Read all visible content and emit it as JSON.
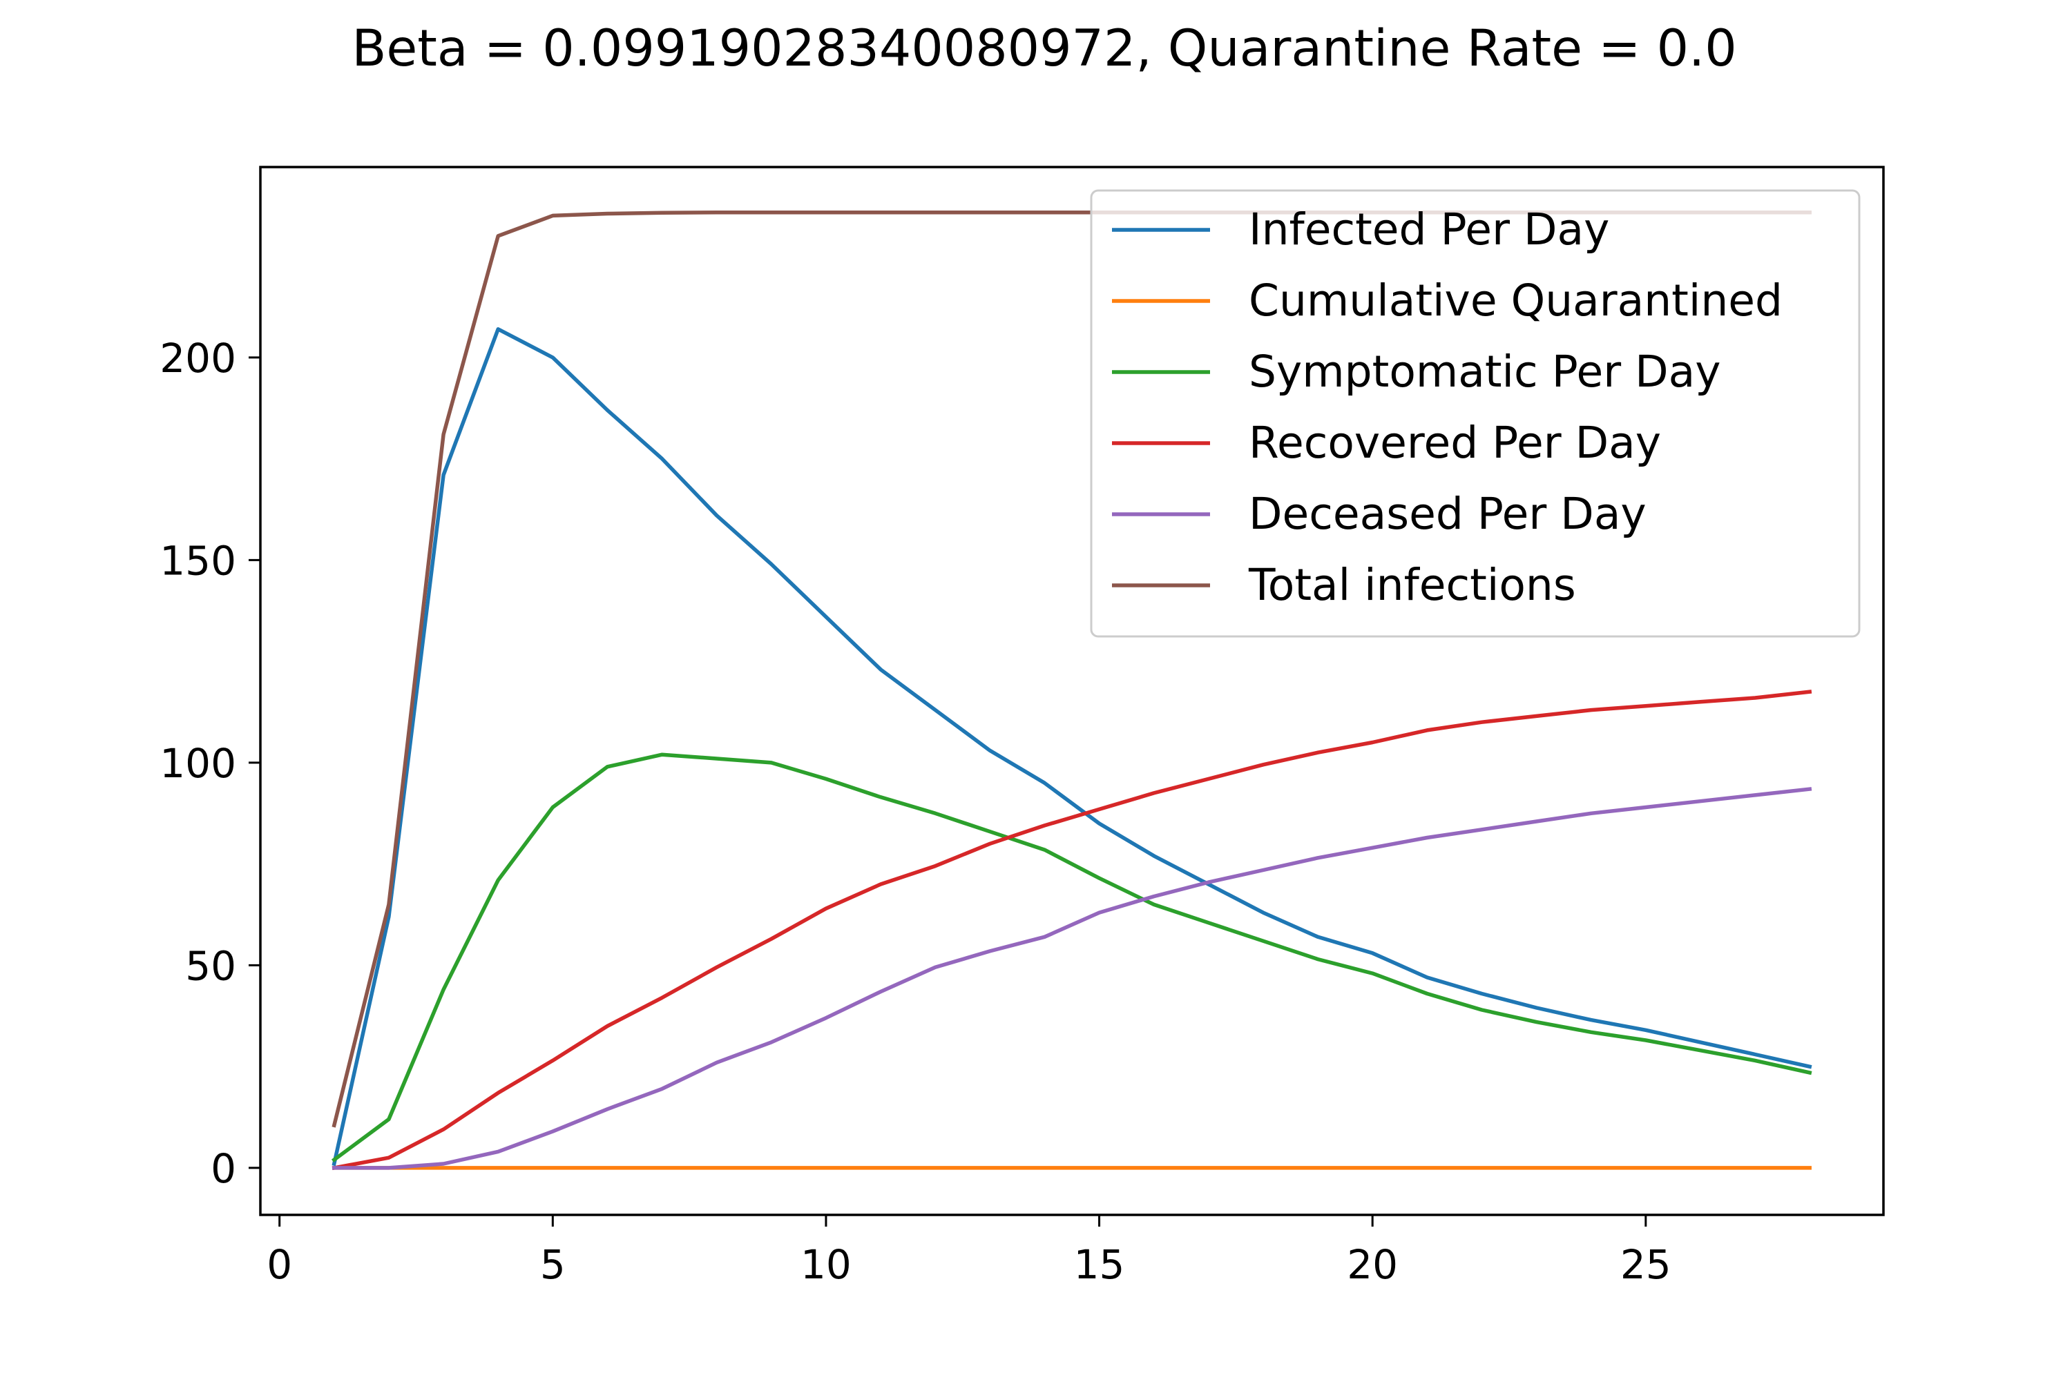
{
  "chart_data": {
    "type": "line",
    "title": "Beta = 0.09919028340080972, Quarantine Rate = 0.0",
    "xlabel": "",
    "ylabel": "",
    "xlim": [
      -0.35,
      29.35
    ],
    "ylim": [
      -11.6,
      247
    ],
    "xticks": [
      0,
      5,
      10,
      15,
      20,
      25
    ],
    "yticks": [
      0,
      50,
      100,
      150,
      200
    ],
    "grid": false,
    "legend_position": "upper right",
    "x": [
      1,
      2,
      3,
      4,
      5,
      6,
      7,
      8,
      9,
      10,
      11,
      12,
      13,
      14,
      15,
      16,
      17,
      18,
      19,
      20,
      21,
      22,
      23,
      24,
      25,
      26,
      27,
      28
    ],
    "series": [
      {
        "name": "Infected Per Day",
        "color": "#1f77b4",
        "values": [
          1,
          62,
          171,
          207,
          200,
          187,
          175,
          161,
          149,
          136,
          123,
          113,
          103,
          95,
          85,
          77,
          70,
          63,
          57,
          53,
          47,
          43,
          39.5,
          36.5,
          34,
          31,
          28,
          25
        ]
      },
      {
        "name": "Cumulative Quarantined",
        "color": "#ff7f0e",
        "values": [
          0,
          0,
          0,
          0,
          0,
          0,
          0,
          0,
          0,
          0,
          0,
          0,
          0,
          0,
          0,
          0,
          0,
          0,
          0,
          0,
          0,
          0,
          0,
          0,
          0,
          0,
          0,
          0
        ]
      },
      {
        "name": "Symptomatic Per Day",
        "color": "#2ca02c",
        "values": [
          2,
          12,
          44,
          71,
          89,
          99,
          102,
          101,
          100,
          96,
          91.5,
          87.5,
          83,
          78.5,
          71.5,
          65,
          60.5,
          56,
          51.5,
          48,
          43,
          39,
          36,
          33.5,
          31.5,
          29,
          26.5,
          23.5
        ]
      },
      {
        "name": "Recovered Per Day",
        "color": "#d62728",
        "values": [
          0,
          2.5,
          9.5,
          18.5,
          26.5,
          35,
          42,
          49.5,
          56.5,
          64,
          70,
          74.5,
          80,
          84.5,
          88.5,
          92.5,
          96,
          99.5,
          102.5,
          105,
          108,
          110,
          111.5,
          113,
          114,
          115,
          116,
          117.5
        ]
      },
      {
        "name": "Deceased Per Day",
        "color": "#9467bd",
        "values": [
          0,
          0,
          1,
          4,
          9,
          14.5,
          19.5,
          26,
          31,
          37,
          43.5,
          49.5,
          53.5,
          57,
          63,
          67,
          70.5,
          73.5,
          76.5,
          79,
          81.5,
          83.5,
          85.5,
          87.5,
          89,
          90.5,
          92,
          93.5
        ]
      },
      {
        "name": "Total infections",
        "color": "#8c564b",
        "values": [
          10.5,
          65,
          181,
          230,
          235,
          235.5,
          235.7,
          235.8,
          235.8,
          235.8,
          235.8,
          235.8,
          235.8,
          235.8,
          235.8,
          235.8,
          235.8,
          235.8,
          235.8,
          235.8,
          235.8,
          235.8,
          235.8,
          235.8,
          235.8,
          235.8,
          235.8,
          235.8
        ]
      }
    ]
  }
}
